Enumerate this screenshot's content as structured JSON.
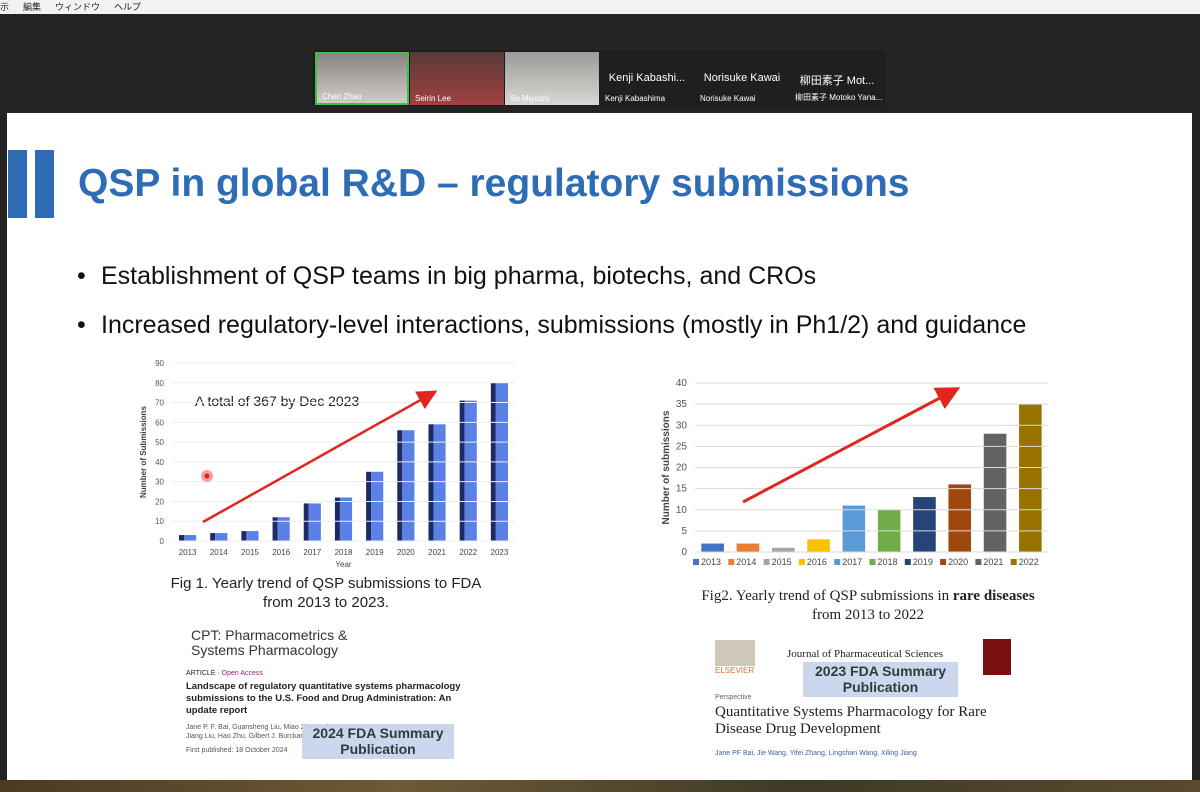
{
  "menu": [
    "示",
    "編集",
    "ウィンドウ",
    "ヘルプ"
  ],
  "participants": [
    {
      "name": "Chen Zhao"
    },
    {
      "name": "Seirin Lee"
    },
    {
      "name": "So Miyoshi"
    },
    {
      "title": "Kenji Kabashi...",
      "name": "Kenji Kabashima"
    },
    {
      "title": "Norisuke Kawai",
      "name": "Norisuke Kawai"
    },
    {
      "title": "柳田素子 Mot...",
      "name": "柳田素子 Motoko Yana..."
    }
  ],
  "slide": {
    "title": "QSP in global R&D – regulatory submissions",
    "bullets": [
      "Establishment of QSP teams in big pharma, biotechs, and CROs",
      "Increased regulatory-level interactions, submissions (mostly in Ph1/2) and guidance"
    ],
    "caption1": "Fig 1. Yearly trend of QSP submissions to FDA from 2013 to 2023.",
    "caption2": [
      "Fig2. Yearly trend of QSP submissions in ",
      "rare diseases",
      " from 2013 to 2022"
    ],
    "pub1": {
      "journal": "CPT: Pharmacometrics & Systems Pharmacology",
      "kind": "ARTICLE",
      "access": "Open Access",
      "headline": "Landscape of regulatory quantitative systems pharmacology submissions to the U.S. Food and Drug Administration: An update report",
      "authors1": "Jane P. F. Bai, Guansheng Liu, Miao Zhao, ...ing Yang,",
      "authors2": "Jiang Liu, Hao Zhu, Gilbert J. Burckart",
      "date": "First published: 18 October 2024",
      "overlay": "2024 FDA Summary Publication"
    },
    "pub2": {
      "publisher": "ELSEVIER",
      "journal": "Journal of Pharmaceutical Sciences",
      "kind": "Perspective",
      "headline": "Quantitative Systems Pharmacology for Rare Disease Drug Development",
      "authors": "Jane PF Bai, Jie Wang, Yifei Zhang, Lingshan Wang, Xiling Jiang",
      "overlay": "2023 FDA Summary Publication"
    }
  },
  "chart_data": [
    {
      "type": "bar3d",
      "annotation": "A total of 367 by Dec 2023",
      "x_label": "Year",
      "y_label": "Number of Submissions",
      "categories": [
        "2013",
        "2014",
        "2015",
        "2016",
        "2017",
        "2018",
        "2019",
        "2020",
        "2021",
        "2022",
        "2023"
      ],
      "values": [
        3,
        4,
        5,
        12,
        19,
        22,
        35,
        56,
        59,
        71,
        80
      ],
      "color": "#5b80e6",
      "ylim": [
        0,
        90
      ],
      "yticks": [
        0,
        10,
        20,
        30,
        40,
        50,
        60,
        70,
        80,
        90
      ],
      "grid": true
    },
    {
      "type": "bar",
      "y_label": "Number of submissions",
      "categories": [
        "2013",
        "2014",
        "2015",
        "2016",
        "2017",
        "2018",
        "2019",
        "2020",
        "2021",
        "2022"
      ],
      "values": [
        2,
        2,
        1,
        3,
        11,
        10,
        13,
        16,
        28,
        35
      ],
      "colors": [
        "#4472c4",
        "#ed7d31",
        "#a5a5a5",
        "#ffc000",
        "#5b9bd5",
        "#70ad47",
        "#264478",
        "#9e480e",
        "#636363",
        "#997300"
      ],
      "ylim": [
        0,
        40
      ],
      "yticks": [
        0,
        5,
        10,
        15,
        20,
        25,
        30,
        35,
        40
      ],
      "grid": true,
      "legend": "bottom"
    }
  ]
}
